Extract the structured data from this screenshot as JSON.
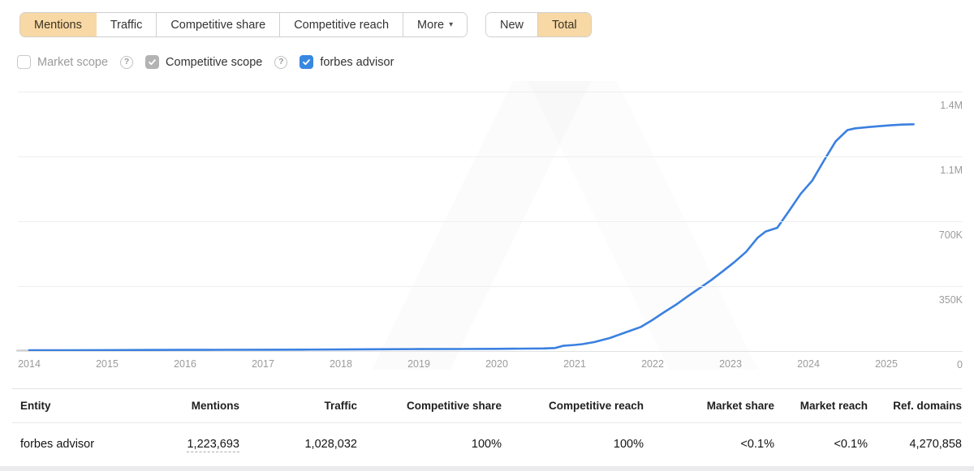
{
  "toolbar": {
    "tabs": [
      {
        "label": "Mentions",
        "active": true
      },
      {
        "label": "Traffic",
        "active": false
      },
      {
        "label": "Competitive share",
        "active": false
      },
      {
        "label": "Competitive reach",
        "active": false
      },
      {
        "label": "More",
        "active": false,
        "has_caret": true
      }
    ],
    "mode_toggle": [
      {
        "label": "New",
        "active": false
      },
      {
        "label": "Total",
        "active": true
      }
    ]
  },
  "filters": {
    "market_scope": {
      "label": "Market scope",
      "checked": false,
      "has_help": true
    },
    "competitive_scope": {
      "label": "Competitive scope",
      "checked": true,
      "check_color": "gray",
      "has_help": true
    },
    "entity_toggle": {
      "label": "forbes advisor",
      "checked": true,
      "check_color": "blue"
    }
  },
  "icons": {
    "help": "?",
    "caret_down": "▾"
  },
  "chart_data": {
    "type": "line",
    "title": "",
    "legend": "none",
    "grid": "horizontal",
    "x_range": [
      2014,
      2025.35
    ],
    "y_max": 1400000,
    "x_ticks": [
      "2014",
      "2015",
      "2016",
      "2017",
      "2018",
      "2019",
      "2020",
      "2021",
      "2022",
      "2023",
      "2024",
      "2025"
    ],
    "y_ticks": [
      {
        "label": "1.4M",
        "value": 1400000
      },
      {
        "label": "1.1M",
        "value": 1050000
      },
      {
        "label": "700K",
        "value": 700000
      },
      {
        "label": "350K",
        "value": 350000
      },
      {
        "label": "0",
        "value": 0
      }
    ],
    "series": [
      {
        "name": "forbes advisor",
        "color": "#3a80e0",
        "points": [
          [
            2014.0,
            4000
          ],
          [
            2014.5,
            4500
          ],
          [
            2015.0,
            5000
          ],
          [
            2015.5,
            5500
          ],
          [
            2016.0,
            6000
          ],
          [
            2016.5,
            6500
          ],
          [
            2017.0,
            7000
          ],
          [
            2017.5,
            7500
          ],
          [
            2018.0,
            8500
          ],
          [
            2018.5,
            9500
          ],
          [
            2019.0,
            10500
          ],
          [
            2019.5,
            11000
          ],
          [
            2020.0,
            12000
          ],
          [
            2020.4,
            13000
          ],
          [
            2020.6,
            14000
          ],
          [
            2020.75,
            16000
          ],
          [
            2020.85,
            28000
          ],
          [
            2021.0,
            33000
          ],
          [
            2021.1,
            37000
          ],
          [
            2021.25,
            48000
          ],
          [
            2021.45,
            70000
          ],
          [
            2021.65,
            100000
          ],
          [
            2021.85,
            130000
          ],
          [
            2022.0,
            168000
          ],
          [
            2022.15,
            210000
          ],
          [
            2022.3,
            250000
          ],
          [
            2022.45,
            295000
          ],
          [
            2022.6,
            338000
          ],
          [
            2022.75,
            382000
          ],
          [
            2022.9,
            430000
          ],
          [
            2023.05,
            480000
          ],
          [
            2023.2,
            535000
          ],
          [
            2023.35,
            612000
          ],
          [
            2023.45,
            645000
          ],
          [
            2023.6,
            665000
          ],
          [
            2023.75,
            755000
          ],
          [
            2023.9,
            848000
          ],
          [
            2024.05,
            920000
          ],
          [
            2024.2,
            1028000
          ],
          [
            2024.35,
            1132000
          ],
          [
            2024.5,
            1192000
          ],
          [
            2024.6,
            1202000
          ],
          [
            2024.75,
            1208000
          ],
          [
            2024.9,
            1213000
          ],
          [
            2025.05,
            1218000
          ],
          [
            2025.2,
            1222000
          ],
          [
            2025.35,
            1223693
          ]
        ]
      }
    ]
  },
  "table": {
    "columns": [
      "Entity",
      "Mentions",
      "Traffic",
      "Competitive share",
      "Competitive reach",
      "Market share",
      "Market reach",
      "Ref. domains"
    ],
    "rows": [
      [
        "forbes advisor",
        "1,223,693",
        "1,028,032",
        "100%",
        "100%",
        "<0.1%",
        "<0.1%",
        "4,270,858"
      ]
    ]
  },
  "colors": {
    "active_tab_bg": "#f8d8a4",
    "line_blue": "#3a80e0",
    "checkbox_blue": "#3887e0",
    "checkbox_gray": "#b3b3b3",
    "axis_text": "#9b9b9b"
  }
}
